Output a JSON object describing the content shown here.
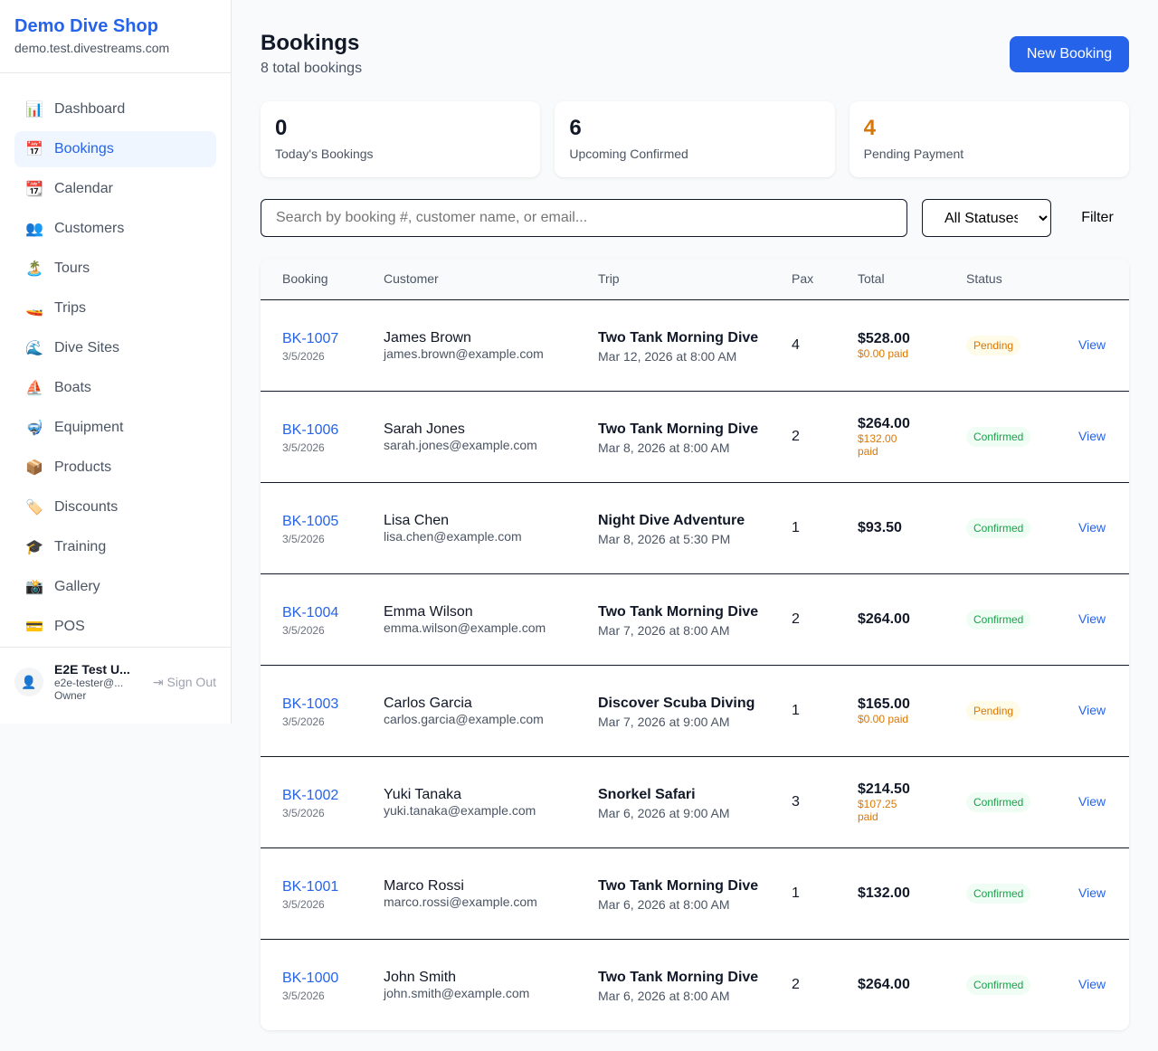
{
  "sidebar": {
    "brand": "Demo Dive Shop",
    "domain": "demo.test.divestreams.com",
    "items": [
      {
        "icon": "📊",
        "icon_name": "bar-chart-icon",
        "label": "Dashboard"
      },
      {
        "icon": "📅",
        "icon_name": "calendar-17-icon",
        "label": "Bookings",
        "active": true
      },
      {
        "icon": "📆",
        "icon_name": "calendar-icon",
        "label": "Calendar"
      },
      {
        "icon": "👥",
        "icon_name": "people-icon",
        "label": "Customers"
      },
      {
        "icon": "🏝️",
        "icon_name": "island-icon",
        "label": "Tours"
      },
      {
        "icon": "🚤",
        "icon_name": "speedboat-icon",
        "label": "Trips"
      },
      {
        "icon": "🌊",
        "icon_name": "wave-icon",
        "label": "Dive Sites"
      },
      {
        "icon": "⛵",
        "icon_name": "sailboat-icon",
        "label": "Boats"
      },
      {
        "icon": "🤿",
        "icon_name": "diving-mask-icon",
        "label": "Equipment"
      },
      {
        "icon": "📦",
        "icon_name": "package-icon",
        "label": "Products"
      },
      {
        "icon": "🏷️",
        "icon_name": "tag-icon",
        "label": "Discounts"
      },
      {
        "icon": "🎓",
        "icon_name": "graduation-cap-icon",
        "label": "Training"
      },
      {
        "icon": "📸",
        "icon_name": "camera-icon",
        "label": "Gallery"
      },
      {
        "icon": "💳",
        "icon_name": "credit-card-icon",
        "label": "POS"
      }
    ],
    "user": {
      "name": "E2E Test U...",
      "email": "e2e-tester@...",
      "role": "Owner",
      "sign_out": "Sign Out"
    }
  },
  "header": {
    "title": "Bookings",
    "subtitle": "8 total bookings",
    "new_button": "New Booking"
  },
  "stats": [
    {
      "value": "0",
      "label": "Today's Bookings",
      "color": "#111827"
    },
    {
      "value": "6",
      "label": "Upcoming Confirmed",
      "color": "#111827"
    },
    {
      "value": "4",
      "label": "Pending Payment",
      "color": "#d97706"
    }
  ],
  "filters": {
    "search_placeholder": "Search by booking #, customer name, or email...",
    "status_selected": "All Statuses",
    "filter_label": "Filter"
  },
  "table": {
    "headers": [
      "Booking",
      "Customer",
      "Trip",
      "Pax",
      "Total",
      "Status",
      ""
    ],
    "rows": [
      {
        "id": "BK-1007",
        "date": "3/5/2026",
        "name": "James Brown",
        "email": "james.brown@example.com",
        "trip": "Two Tank Morning Dive",
        "trip_date": "Mar 12, 2026 at 8:00 AM",
        "pax": "4",
        "total": "$528.00",
        "paid": "$0.00 paid",
        "status": "Pending",
        "action": "View"
      },
      {
        "id": "BK-1006",
        "date": "3/5/2026",
        "name": "Sarah Jones",
        "email": "sarah.jones@example.com",
        "trip": "Two Tank Morning Dive",
        "trip_date": "Mar 8, 2026 at 8:00 AM",
        "pax": "2",
        "total": "$264.00",
        "paid": "$132.00 paid",
        "status": "Confirmed",
        "action": "View"
      },
      {
        "id": "BK-1005",
        "date": "3/5/2026",
        "name": "Lisa Chen",
        "email": "lisa.chen@example.com",
        "trip": "Night Dive Adventure",
        "trip_date": "Mar 8, 2026 at 5:30 PM",
        "pax": "1",
        "total": "$93.50",
        "paid": "",
        "status": "Confirmed",
        "action": "View"
      },
      {
        "id": "BK-1004",
        "date": "3/5/2026",
        "name": "Emma Wilson",
        "email": "emma.wilson@example.com",
        "trip": "Two Tank Morning Dive",
        "trip_date": "Mar 7, 2026 at 8:00 AM",
        "pax": "2",
        "total": "$264.00",
        "paid": "",
        "status": "Confirmed",
        "action": "View"
      },
      {
        "id": "BK-1003",
        "date": "3/5/2026",
        "name": "Carlos Garcia",
        "email": "carlos.garcia@example.com",
        "trip": "Discover Scuba Diving",
        "trip_date": "Mar 7, 2026 at 9:00 AM",
        "pax": "1",
        "total": "$165.00",
        "paid": "$0.00 paid",
        "status": "Pending",
        "action": "View"
      },
      {
        "id": "BK-1002",
        "date": "3/5/2026",
        "name": "Yuki Tanaka",
        "email": "yuki.tanaka@example.com",
        "trip": "Snorkel Safari",
        "trip_date": "Mar 6, 2026 at 9:00 AM",
        "pax": "3",
        "total": "$214.50",
        "paid": "$107.25 paid",
        "status": "Confirmed",
        "action": "View"
      },
      {
        "id": "BK-1001",
        "date": "3/5/2026",
        "name": "Marco Rossi",
        "email": "marco.rossi@example.com",
        "trip": "Two Tank Morning Dive",
        "trip_date": "Mar 6, 2026 at 8:00 AM",
        "pax": "1",
        "total": "$132.00",
        "paid": "",
        "status": "Confirmed",
        "action": "View"
      },
      {
        "id": "BK-1000",
        "date": "3/5/2026",
        "name": "John Smith",
        "email": "john.smith@example.com",
        "trip": "Two Tank Morning Dive",
        "trip_date": "Mar 6, 2026 at 8:00 AM",
        "pax": "2",
        "total": "$264.00",
        "paid": "",
        "status": "Confirmed",
        "action": "View"
      }
    ]
  }
}
